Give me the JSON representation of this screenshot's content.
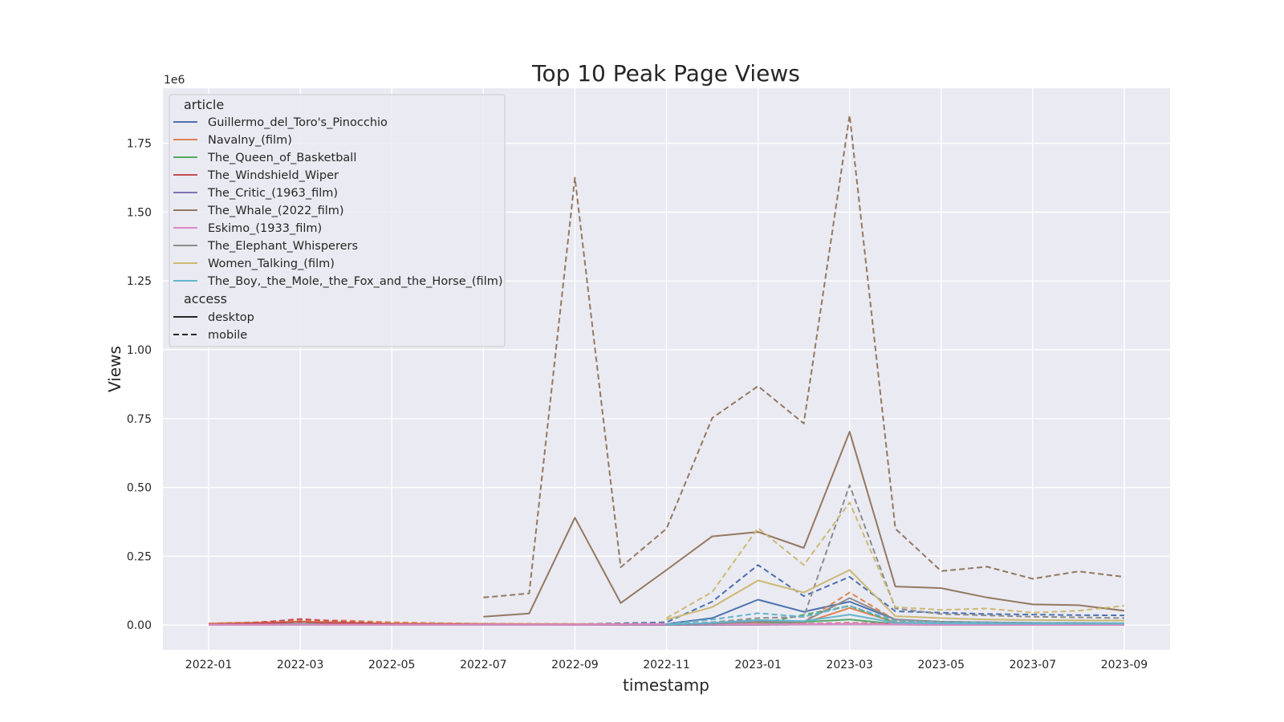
{
  "chart_data": {
    "type": "line",
    "title": "Top 10 Peak Page Views",
    "xlabel": "timestamp",
    "ylabel": "Views",
    "y_offset_text": "1e6",
    "x_tick_labels": [
      "2022-01",
      "2022-03",
      "2022-05",
      "2022-07",
      "2022-09",
      "2022-11",
      "2023-01",
      "2023-03",
      "2023-05",
      "2023-07",
      "2023-09"
    ],
    "y_ticks": [
      0,
      0.25,
      0.5,
      0.75,
      1.0,
      1.25,
      1.5,
      1.75
    ],
    "y_tick_labels": [
      "0.00",
      "0.25",
      "0.50",
      "0.75",
      "1.00",
      "1.25",
      "1.50",
      "1.75"
    ],
    "xlim": [
      "2021-12",
      "2023-10"
    ],
    "ylim": [
      -0.09,
      1.95
    ],
    "y_scale_note": "values in millions of views (axis multiplier 1e6)",
    "grid": true,
    "legend_placement": "top-left",
    "legend_article_title": "article",
    "legend_access_title": "access",
    "access": [
      {
        "name": "desktop",
        "dash": ""
      },
      {
        "name": "mobile",
        "dash": "7,4"
      }
    ],
    "series": [
      {
        "name": "Guillermo_del_Toro's_Pinocchio",
        "color": "#4c72b0",
        "desktop": [
          [
            "2022-01",
            0.002
          ],
          [
            "2022-03",
            0.003
          ],
          [
            "2022-05",
            0.002
          ],
          [
            "2022-07",
            0.002
          ],
          [
            "2022-09",
            0.002
          ],
          [
            "2022-11",
            0.004
          ],
          [
            "2022-12",
            0.025
          ],
          [
            "2023-01",
            0.092
          ],
          [
            "2023-02",
            0.048
          ],
          [
            "2023-03",
            0.085
          ],
          [
            "2023-04",
            0.02
          ],
          [
            "2023-05",
            0.012
          ],
          [
            "2023-06",
            0.01
          ],
          [
            "2023-07",
            0.008
          ],
          [
            "2023-08",
            0.007
          ],
          [
            "2023-09",
            0.006
          ]
        ],
        "mobile": [
          [
            "2022-01",
            0.002
          ],
          [
            "2022-03",
            0.004
          ],
          [
            "2022-05",
            0.003
          ],
          [
            "2022-07",
            0.003
          ],
          [
            "2022-09",
            0.003
          ],
          [
            "2022-11",
            0.01
          ],
          [
            "2022-12",
            0.085
          ],
          [
            "2023-01",
            0.218
          ],
          [
            "2023-02",
            0.105
          ],
          [
            "2023-03",
            0.175
          ],
          [
            "2023-04",
            0.05
          ],
          [
            "2023-05",
            0.045
          ],
          [
            "2023-06",
            0.04
          ],
          [
            "2023-07",
            0.038
          ],
          [
            "2023-08",
            0.036
          ],
          [
            "2023-09",
            0.035
          ]
        ]
      },
      {
        "name": "Navalny_(film)",
        "color": "#dd8452",
        "desktop": [
          [
            "2022-01",
            0.006
          ],
          [
            "2022-02",
            0.009
          ],
          [
            "2022-03",
            0.013
          ],
          [
            "2022-04",
            0.01
          ],
          [
            "2022-05",
            0.006
          ],
          [
            "2022-06",
            0.005
          ],
          [
            "2022-07",
            0.004
          ],
          [
            "2022-09",
            0.003
          ],
          [
            "2022-11",
            0.003
          ],
          [
            "2022-12",
            0.004
          ],
          [
            "2023-01",
            0.006
          ],
          [
            "2023-02",
            0.007
          ],
          [
            "2023-03",
            0.062
          ],
          [
            "2023-04",
            0.01
          ],
          [
            "2023-05",
            0.006
          ],
          [
            "2023-07",
            0.004
          ],
          [
            "2023-09",
            0.004
          ]
        ],
        "mobile": [
          [
            "2022-01",
            0.006
          ],
          [
            "2022-02",
            0.01
          ],
          [
            "2022-03",
            0.018
          ],
          [
            "2022-04",
            0.016
          ],
          [
            "2022-05",
            0.01
          ],
          [
            "2022-06",
            0.007
          ],
          [
            "2022-07",
            0.005
          ],
          [
            "2022-09",
            0.004
          ],
          [
            "2022-11",
            0.004
          ],
          [
            "2022-12",
            0.006
          ],
          [
            "2023-01",
            0.01
          ],
          [
            "2023-02",
            0.012
          ],
          [
            "2023-03",
            0.118
          ],
          [
            "2023-04",
            0.018
          ],
          [
            "2023-05",
            0.01
          ],
          [
            "2023-07",
            0.007
          ],
          [
            "2023-09",
            0.006
          ]
        ]
      },
      {
        "name": "The_Queen_of_Basketball",
        "color": "#55a868",
        "desktop": [
          [
            "2022-01",
            0.001
          ],
          [
            "2022-03",
            0.003
          ],
          [
            "2022-05",
            0.001
          ],
          [
            "2022-07",
            0.001
          ],
          [
            "2022-09",
            0.001
          ],
          [
            "2022-11",
            0.001
          ],
          [
            "2023-01",
            0.003
          ],
          [
            "2023-03",
            0.02
          ],
          [
            "2023-04",
            0.004
          ],
          [
            "2023-06",
            0.002
          ],
          [
            "2023-09",
            0.001
          ]
        ],
        "mobile": [
          [
            "2022-01",
            0.001
          ],
          [
            "2022-03",
            0.004
          ],
          [
            "2022-05",
            0.002
          ],
          [
            "2022-07",
            0.001
          ],
          [
            "2022-09",
            0.001
          ],
          [
            "2022-11",
            0.001
          ],
          [
            "2023-01",
            0.004
          ],
          [
            "2023-03",
            0.07
          ],
          [
            "2023-04",
            0.008
          ],
          [
            "2023-06",
            0.003
          ],
          [
            "2023-09",
            0.002
          ]
        ]
      },
      {
        "name": "The_Windshield_Wiper",
        "color": "#c44e52",
        "desktop": [
          [
            "2022-01",
            0.001
          ],
          [
            "2022-02",
            0.005
          ],
          [
            "2022-03",
            0.011
          ],
          [
            "2022-04",
            0.006
          ],
          [
            "2022-05",
            0.003
          ],
          [
            "2022-07",
            0.002
          ],
          [
            "2022-09",
            0.001
          ],
          [
            "2022-11",
            0.001
          ],
          [
            "2023-01",
            0.001
          ],
          [
            "2023-03",
            0.004
          ],
          [
            "2023-05",
            0.001
          ],
          [
            "2023-09",
            0.001
          ]
        ],
        "mobile": [
          [
            "2022-01",
            0.002
          ],
          [
            "2022-02",
            0.008
          ],
          [
            "2022-03",
            0.022
          ],
          [
            "2022-04",
            0.012
          ],
          [
            "2022-05",
            0.004
          ],
          [
            "2022-07",
            0.002
          ],
          [
            "2022-09",
            0.001
          ],
          [
            "2022-11",
            0.001
          ],
          [
            "2023-01",
            0.002
          ],
          [
            "2023-03",
            0.008
          ],
          [
            "2023-05",
            0.002
          ],
          [
            "2023-09",
            0.001
          ]
        ]
      },
      {
        "name": "The_Critic_(1963_film)",
        "color": "#8172b3",
        "desktop": [
          [
            "2022-01",
            0.001
          ],
          [
            "2022-03",
            0.001
          ],
          [
            "2022-05",
            0.001
          ],
          [
            "2022-07",
            0.001
          ],
          [
            "2022-09",
            0.001
          ],
          [
            "2022-11",
            0.001
          ],
          [
            "2023-01",
            0.001
          ],
          [
            "2023-03",
            0.002
          ],
          [
            "2023-05",
            0.001
          ],
          [
            "2023-09",
            0.001
          ]
        ],
        "mobile": [
          [
            "2022-01",
            0.001
          ],
          [
            "2022-03",
            0.001
          ],
          [
            "2022-05",
            0.001
          ],
          [
            "2022-07",
            0.001
          ],
          [
            "2022-09",
            0.001
          ],
          [
            "2022-11",
            0.001
          ],
          [
            "2023-01",
            0.001
          ],
          [
            "2023-03",
            0.003
          ],
          [
            "2023-05",
            0.001
          ],
          [
            "2023-09",
            0.001
          ]
        ]
      },
      {
        "name": "The_Whale_(2022_film)",
        "color": "#937860",
        "desktop": [
          [
            "2022-07",
            0.03
          ],
          [
            "2022-08",
            0.042
          ],
          [
            "2022-09",
            0.39
          ],
          [
            "2022-10",
            0.08
          ],
          [
            "2022-11",
            0.2
          ],
          [
            "2022-12",
            0.322
          ],
          [
            "2023-01",
            0.338
          ],
          [
            "2023-02",
            0.28
          ],
          [
            "2023-03",
            0.702
          ],
          [
            "2023-04",
            0.14
          ],
          [
            "2023-05",
            0.134
          ],
          [
            "2023-06",
            0.1
          ],
          [
            "2023-07",
            0.075
          ],
          [
            "2023-08",
            0.072
          ],
          [
            "2023-09",
            0.052
          ]
        ],
        "mobile": [
          [
            "2022-07",
            0.1
          ],
          [
            "2022-08",
            0.115
          ],
          [
            "2022-09",
            1.625
          ],
          [
            "2022-10",
            0.21
          ],
          [
            "2022-11",
            0.35
          ],
          [
            "2022-12",
            0.752
          ],
          [
            "2023-01",
            0.868
          ],
          [
            "2023-02",
            0.732
          ],
          [
            "2023-03",
            1.852
          ],
          [
            "2023-04",
            0.35
          ],
          [
            "2023-05",
            0.196
          ],
          [
            "2023-06",
            0.212
          ],
          [
            "2023-07",
            0.168
          ],
          [
            "2023-08",
            0.195
          ],
          [
            "2023-09",
            0.175
          ]
        ]
      },
      {
        "name": "Eskimo_(1933_film)",
        "color": "#da8bc3",
        "desktop": [
          [
            "2022-01",
            0.001
          ],
          [
            "2022-03",
            0.001
          ],
          [
            "2022-05",
            0.001
          ],
          [
            "2022-07",
            0.001
          ],
          [
            "2022-09",
            0.001
          ],
          [
            "2022-10",
            0.002
          ],
          [
            "2022-11",
            0.003
          ],
          [
            "2023-01",
            0.002
          ],
          [
            "2023-03",
            0.003
          ],
          [
            "2023-05",
            0.001
          ],
          [
            "2023-09",
            0.001
          ]
        ],
        "mobile": [
          [
            "2022-01",
            0.001
          ],
          [
            "2022-03",
            0.002
          ],
          [
            "2022-05",
            0.001
          ],
          [
            "2022-07",
            0.002
          ],
          [
            "2022-09",
            0.002
          ],
          [
            "2022-10",
            0.003
          ],
          [
            "2022-11",
            0.004
          ],
          [
            "2023-01",
            0.003
          ],
          [
            "2023-03",
            0.006
          ],
          [
            "2023-05",
            0.002
          ],
          [
            "2023-09",
            0.001
          ]
        ]
      },
      {
        "name": "The_Elephant_Whisperers",
        "color": "#8c8c8c",
        "desktop": [
          [
            "2022-11",
            0.001
          ],
          [
            "2022-12",
            0.005
          ],
          [
            "2023-01",
            0.012
          ],
          [
            "2023-02",
            0.012
          ],
          [
            "2023-03",
            0.098
          ],
          [
            "2023-04",
            0.02
          ],
          [
            "2023-05",
            0.012
          ],
          [
            "2023-06",
            0.01
          ],
          [
            "2023-07",
            0.008
          ],
          [
            "2023-08",
            0.008
          ],
          [
            "2023-09",
            0.006
          ]
        ],
        "mobile": [
          [
            "2022-11",
            0.002
          ],
          [
            "2022-12",
            0.01
          ],
          [
            "2023-01",
            0.025
          ],
          [
            "2023-02",
            0.03
          ],
          [
            "2023-03",
            0.508
          ],
          [
            "2023-04",
            0.06
          ],
          [
            "2023-05",
            0.04
          ],
          [
            "2023-06",
            0.035
          ],
          [
            "2023-07",
            0.03
          ],
          [
            "2023-08",
            0.028
          ],
          [
            "2023-09",
            0.025
          ]
        ]
      },
      {
        "name": "Women_Talking_(film)",
        "color": "#ccb974",
        "desktop": [
          [
            "2022-11",
            0.02
          ],
          [
            "2022-12",
            0.065
          ],
          [
            "2023-01",
            0.162
          ],
          [
            "2023-02",
            0.118
          ],
          [
            "2023-03",
            0.2
          ],
          [
            "2023-04",
            0.032
          ],
          [
            "2023-05",
            0.025
          ],
          [
            "2023-06",
            0.02
          ],
          [
            "2023-07",
            0.018
          ],
          [
            "2023-08",
            0.017
          ],
          [
            "2023-09",
            0.016
          ]
        ],
        "mobile": [
          [
            "2022-11",
            0.025
          ],
          [
            "2022-12",
            0.12
          ],
          [
            "2023-01",
            0.352
          ],
          [
            "2023-02",
            0.218
          ],
          [
            "2023-03",
            0.445
          ],
          [
            "2023-04",
            0.065
          ],
          [
            "2023-05",
            0.055
          ],
          [
            "2023-06",
            0.06
          ],
          [
            "2023-07",
            0.045
          ],
          [
            "2023-08",
            0.052
          ],
          [
            "2023-09",
            0.07
          ]
        ]
      },
      {
        "name": "The_Boy,_the_Mole,_the_Fox_and_the_Horse_(film)",
        "color": "#64b5cd",
        "desktop": [
          [
            "2022-11",
            0.002
          ],
          [
            "2022-12",
            0.008
          ],
          [
            "2023-01",
            0.018
          ],
          [
            "2023-02",
            0.014
          ],
          [
            "2023-03",
            0.038
          ],
          [
            "2023-04",
            0.008
          ],
          [
            "2023-05",
            0.006
          ],
          [
            "2023-07",
            0.005
          ],
          [
            "2023-09",
            0.005
          ]
        ],
        "mobile": [
          [
            "2022-11",
            0.003
          ],
          [
            "2022-12",
            0.02
          ],
          [
            "2023-01",
            0.043
          ],
          [
            "2023-02",
            0.03
          ],
          [
            "2023-03",
            0.07
          ],
          [
            "2023-04",
            0.015
          ],
          [
            "2023-05",
            0.01
          ],
          [
            "2023-07",
            0.008
          ],
          [
            "2023-09",
            0.007
          ]
        ]
      }
    ]
  }
}
